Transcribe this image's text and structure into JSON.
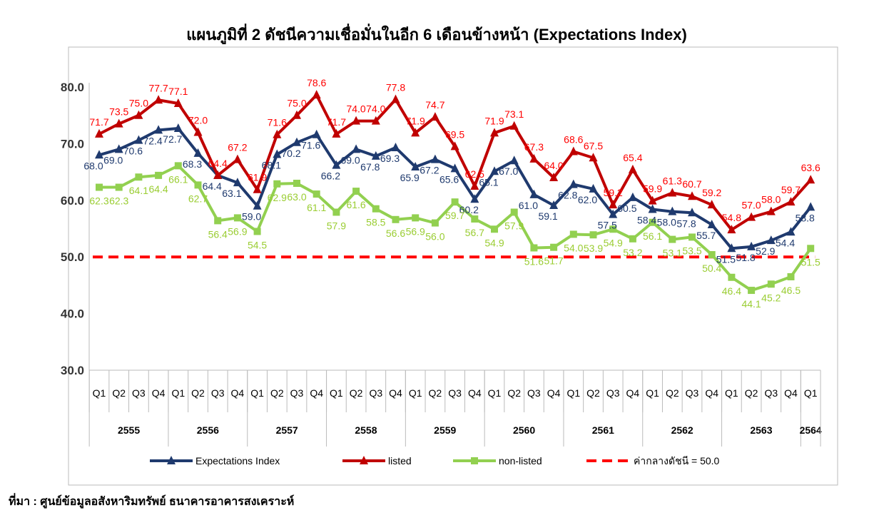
{
  "chart_data": {
    "type": "line",
    "title": "แผนภูมิที่ 2 ดัชนีความเชื่อมั่นในอีก 6 เดือนข้างหน้า (Expectations Index)",
    "source": "ที่มา : ศูนย์ข้อมูลอสังหาริมทรัพย์ ธนาคารอาคารสงเคราะห์",
    "ylim": [
      30,
      80
    ],
    "yticks": [
      "30.0",
      "40.0",
      "50.0",
      "60.0",
      "70.0",
      "80.0"
    ],
    "quarters": [
      "Q1",
      "Q2",
      "Q3",
      "Q4",
      "Q1",
      "Q2",
      "Q3",
      "Q4",
      "Q1",
      "Q2",
      "Q3",
      "Q4",
      "Q1",
      "Q2",
      "Q3",
      "Q4",
      "Q1",
      "Q2",
      "Q3",
      "Q4",
      "Q1",
      "Q2",
      "Q3",
      "Q4",
      "Q1",
      "Q2",
      "Q3",
      "Q4",
      "Q1",
      "Q2",
      "Q3",
      "Q4",
      "Q1",
      "Q2",
      "Q3",
      "Q4",
      "Q1"
    ],
    "years": [
      {
        "label": "2555",
        "count": 4
      },
      {
        "label": "2556",
        "count": 4
      },
      {
        "label": "2557",
        "count": 4
      },
      {
        "label": "2558",
        "count": 4
      },
      {
        "label": "2559",
        "count": 4
      },
      {
        "label": "2560",
        "count": 4
      },
      {
        "label": "2561",
        "count": 4
      },
      {
        "label": "2562",
        "count": 4
      },
      {
        "label": "2563",
        "count": 4
      },
      {
        "label": "2564",
        "count": 1
      }
    ],
    "series": [
      {
        "name": "Expectations Index",
        "color": "#1f3a6e",
        "marker": "triangle",
        "values": [
          68.0,
          69.0,
          70.6,
          72.4,
          72.7,
          68.3,
          64.4,
          63.1,
          59.0,
          68.1,
          70.2,
          71.6,
          66.2,
          69.0,
          67.8,
          69.3,
          65.9,
          67.2,
          65.6,
          60.2,
          65.1,
          67.0,
          61.0,
          59.1,
          62.8,
          62.0,
          57.5,
          60.5,
          58.4,
          58.0,
          57.8,
          55.7,
          51.5,
          51.8,
          52.9,
          54.4,
          58.8
        ]
      },
      {
        "name": "listed",
        "color": "#c00000",
        "marker": "triangle",
        "values": [
          71.7,
          73.5,
          75.0,
          77.7,
          77.1,
          72.0,
          64.4,
          67.2,
          61.9,
          71.6,
          75.0,
          78.6,
          71.7,
          74.0,
          74.0,
          77.8,
          71.9,
          74.7,
          69.5,
          62.5,
          71.9,
          73.1,
          67.3,
          64.0,
          68.6,
          67.5,
          59.2,
          65.4,
          59.9,
          61.3,
          60.7,
          59.2,
          54.8,
          57.0,
          58.0,
          59.7,
          63.6
        ]
      },
      {
        "name": "non-listed",
        "color": "#92d050",
        "marker": "square",
        "values": [
          62.3,
          62.3,
          64.1,
          64.4,
          66.1,
          62.7,
          56.4,
          56.9,
          54.5,
          62.9,
          63.0,
          61.1,
          57.9,
          61.6,
          58.5,
          56.6,
          56.9,
          56.0,
          59.7,
          56.7,
          54.9,
          57.9,
          51.6,
          51.7,
          54.0,
          53.9,
          54.9,
          53.2,
          56.1,
          53.1,
          53.5,
          50.4,
          46.4,
          44.1,
          45.2,
          46.5,
          51.5
        ]
      }
    ],
    "reference_line": {
      "name": "ค่ากลางดัชนี = 50.0",
      "value": 50.0,
      "color": "#ff0000"
    },
    "label_colors": {
      "Expectations Index": "#1f3a6e",
      "listed": "#ff0000",
      "non-listed": "#9acd32"
    },
    "legend_position": "bottom",
    "grid": false
  }
}
